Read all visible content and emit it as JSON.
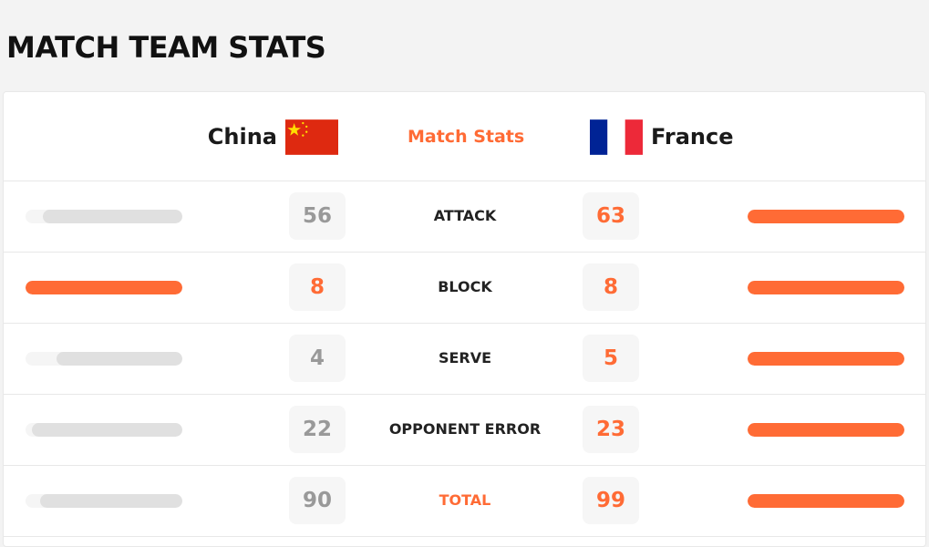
{
  "title": "MATCH TEAM STATS",
  "header": {
    "home_team": "China",
    "away_team": "France",
    "center_label": "Match Stats",
    "home_flag": "china-flag",
    "away_flag": "france-flag"
  },
  "colors": {
    "accent": "#ff6b35",
    "leader_bar": "#ff6b35",
    "trailer_bar": "#e0e0e0",
    "leader_text": "#ff6b35",
    "trailer_text": "#999999"
  },
  "rows": [
    {
      "label": "ATTACK",
      "home": 56,
      "away": 63
    },
    {
      "label": "BLOCK",
      "home": 8,
      "away": 8
    },
    {
      "label": "SERVE",
      "home": 4,
      "away": 5
    },
    {
      "label": "OPPONENT ERROR",
      "home": 22,
      "away": 23
    },
    {
      "label": "TOTAL",
      "home": 90,
      "away": 99,
      "highlight": true
    }
  ]
}
